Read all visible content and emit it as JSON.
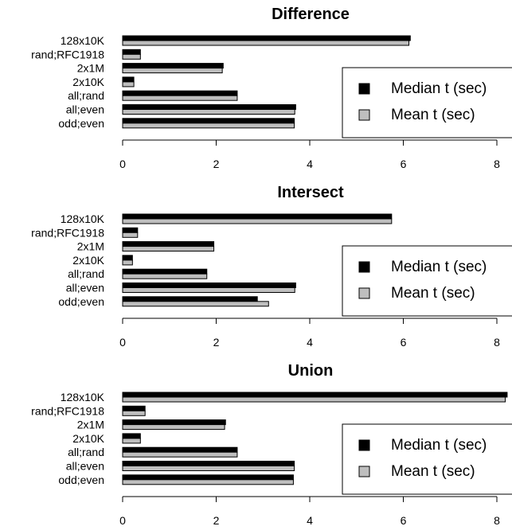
{
  "chart_data": [
    {
      "type": "bar",
      "orientation": "horizontal",
      "title": "Difference",
      "categories": [
        "128x10K",
        "rand;RFC1918",
        "2x1M",
        "2x10K",
        "all;rand",
        "all;even",
        "odd;even"
      ],
      "series": [
        {
          "name": "Median t (sec)",
          "color": "#000000",
          "values": [
            6.15,
            0.38,
            2.15,
            0.24,
            2.45,
            3.7,
            3.67
          ]
        },
        {
          "name": "Mean t (sec)",
          "color": "#bebebe",
          "values": [
            6.12,
            0.38,
            2.13,
            0.24,
            2.45,
            3.68,
            3.67
          ]
        }
      ],
      "xlim": [
        0,
        8
      ],
      "xticks": [
        "0",
        "2",
        "4",
        "6",
        "8"
      ],
      "legend": "right"
    },
    {
      "type": "bar",
      "orientation": "horizontal",
      "title": "Intersect",
      "categories": [
        "128x10K",
        "rand;RFC1918",
        "2x1M",
        "2x10K",
        "all;rand",
        "all;even",
        "odd;even"
      ],
      "series": [
        {
          "name": "Median t (sec)",
          "color": "#000000",
          "values": [
            5.75,
            0.32,
            1.95,
            0.21,
            1.8,
            3.7,
            2.88
          ]
        },
        {
          "name": "Mean t (sec)",
          "color": "#bebebe",
          "values": [
            5.75,
            0.32,
            1.95,
            0.21,
            1.8,
            3.68,
            3.12
          ]
        }
      ],
      "xlim": [
        0,
        8
      ],
      "xticks": [
        "0",
        "2",
        "4",
        "6",
        "8"
      ],
      "legend": "right"
    },
    {
      "type": "bar",
      "orientation": "horizontal",
      "title": "Union",
      "categories": [
        "128x10K",
        "rand;RFC1918",
        "2x1M",
        "2x10K",
        "all;rand",
        "all;even",
        "odd;even"
      ],
      "series": [
        {
          "name": "Median t (sec)",
          "color": "#000000",
          "values": [
            8.22,
            0.48,
            2.2,
            0.38,
            2.45,
            3.67,
            3.65
          ]
        },
        {
          "name": "Mean t (sec)",
          "color": "#bebebe",
          "values": [
            8.18,
            0.48,
            2.18,
            0.38,
            2.45,
            3.67,
            3.65
          ]
        }
      ],
      "xlim": [
        0,
        8
      ],
      "xticks": [
        "0",
        "2",
        "4",
        "6",
        "8"
      ],
      "legend": "right"
    }
  ]
}
